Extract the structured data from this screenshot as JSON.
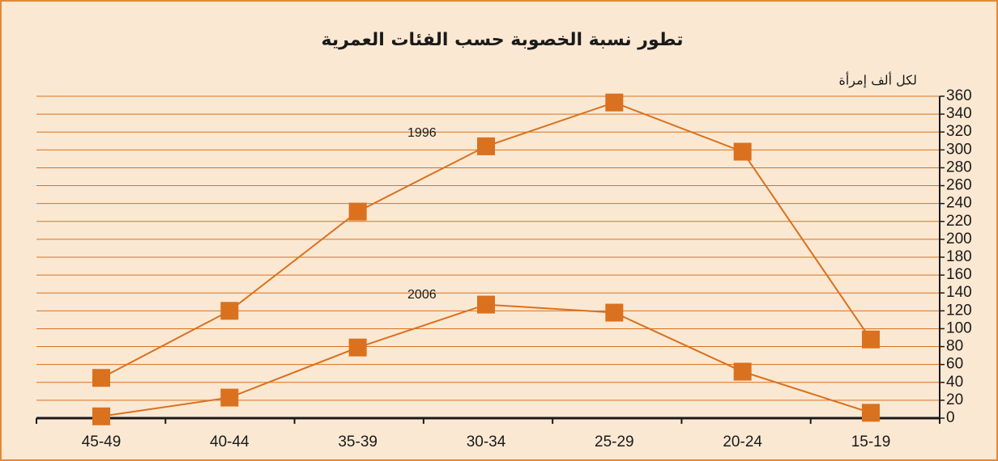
{
  "chart_data": {
    "type": "line",
    "title": "تطور نسبة الخصوبة حسب الفئات العمرية",
    "y_axis_label": "لكل ألف إمرأة",
    "categories": [
      "45-49",
      "40-44",
      "35-39",
      "30-34",
      "25-29",
      "20-24",
      "15-19"
    ],
    "series": [
      {
        "name": "1996",
        "color": "#d9711f",
        "values": [
          45,
          120,
          231,
          304,
          353,
          298,
          88
        ]
      },
      {
        "name": "2006",
        "color": "#d9711f",
        "values": [
          2,
          23,
          79,
          127,
          118,
          52,
          6
        ]
      }
    ],
    "ylim": [
      0,
      360
    ],
    "yticks": [
      0,
      20,
      40,
      60,
      80,
      100,
      120,
      140,
      160,
      180,
      200,
      220,
      240,
      260,
      280,
      300,
      320,
      340,
      360
    ],
    "grid": true
  }
}
